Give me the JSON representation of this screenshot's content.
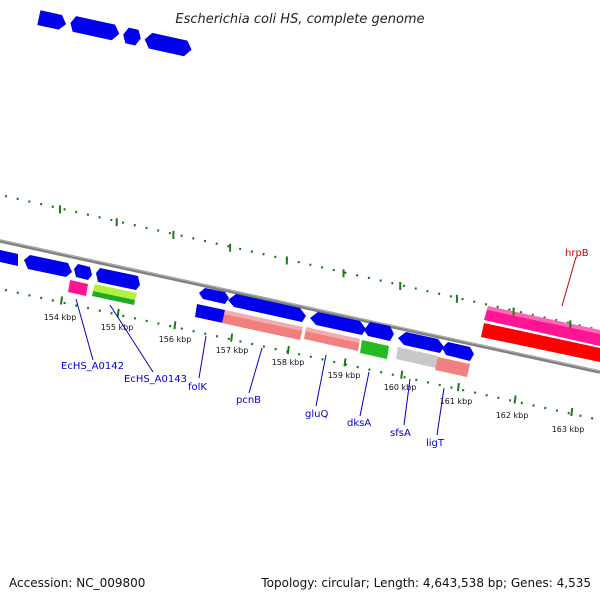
{
  "title": "Escherichia coli HS, complete genome",
  "footer": {
    "accession": "Accession: NC_009800",
    "summary": "Topology: circular; Length: 4,643,538 bp; Genes: 4,535"
  },
  "colors": {
    "backbone": "#808080",
    "tick": "#1a7a1a",
    "gene_forward": "#0000ee",
    "cds_pink": "#ee88aa",
    "cds_salmon": "#f08080",
    "cds_green": "#22bb22",
    "cds_lime": "#b0f040",
    "cds_grey": "#c8c8c8",
    "cds_magenta": "#ff1493",
    "cds_red": "#ff0000",
    "label_blue": "#0000cc",
    "label_red": "#cc0000"
  },
  "scale": {
    "ticks": [
      "154 kbp",
      "155 kbp",
      "156 kbp",
      "157 kbp",
      "158 kbp",
      "159 kbp",
      "160 kbp",
      "161 kbp",
      "162 kbp",
      "163 kbp"
    ]
  },
  "genes": {
    "labels": [
      "EcHS_A0142",
      "EcHS_A0143",
      "folK",
      "pcnB",
      "gluQ",
      "dksA",
      "sfsA",
      "ligT",
      "hrpB"
    ]
  }
}
